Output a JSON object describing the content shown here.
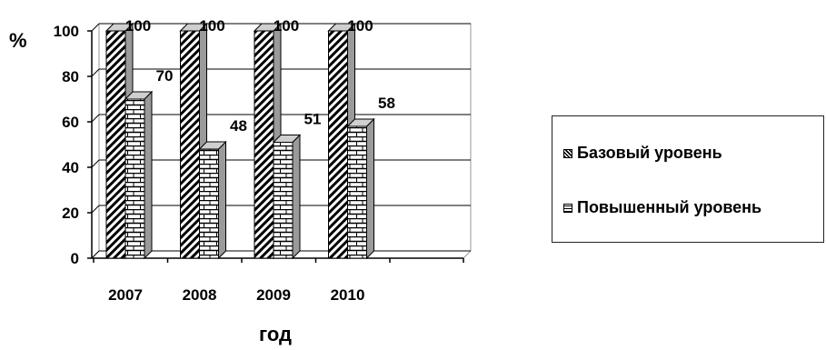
{
  "chart_data": {
    "type": "bar",
    "categories": [
      "2007",
      "2008",
      "2009",
      "2010"
    ],
    "series": [
      {
        "name": "Базовый уровень",
        "values": [
          100,
          100,
          100,
          100
        ],
        "pattern": "diagonal-hatch"
      },
      {
        "name": "Повышенный уровень",
        "values": [
          70,
          48,
          51,
          58
        ],
        "pattern": "brick"
      }
    ],
    "title": "",
    "xlabel": "год",
    "ylabel": "%",
    "ylim": [
      0,
      100
    ],
    "yticks": [
      "0",
      "20",
      "40",
      "60",
      "80",
      "100"
    ],
    "grid": true,
    "legend_position": "right",
    "three_d": true
  },
  "legend": {
    "items": [
      {
        "label": "Базовый уровень"
      },
      {
        "label": "Повышенный уровень"
      }
    ]
  },
  "colors": {
    "ink": "#000000",
    "background": "#ffffff",
    "hatch_fill": "#ffffff",
    "side_fill": "#9a9a9a"
  }
}
